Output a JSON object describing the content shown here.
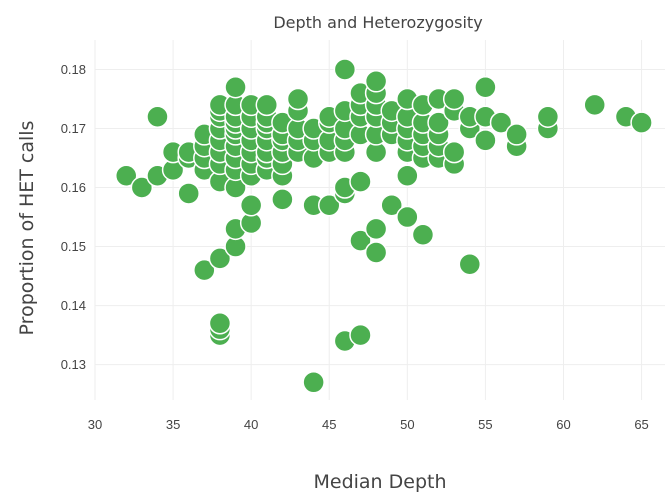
{
  "chart_data": {
    "type": "scatter",
    "title": "Depth and Heterozygosity",
    "xlabel": "Median Depth",
    "ylabel": "Proportion of HET calls",
    "xlim": [
      30,
      66.5
    ],
    "ylim": [
      0.124,
      0.185
    ],
    "xticks": [
      30,
      35,
      40,
      45,
      50,
      55,
      60,
      65
    ],
    "yticks": [
      0.13,
      0.14,
      0.15,
      0.16,
      0.17,
      0.18
    ],
    "grid": true,
    "marker_color": "#4caf50",
    "points": [
      [
        32,
        0.162
      ],
      [
        33,
        0.16
      ],
      [
        34,
        0.162
      ],
      [
        34,
        0.172
      ],
      [
        35,
        0.163
      ],
      [
        35,
        0.166
      ],
      [
        36,
        0.159
      ],
      [
        36,
        0.165
      ],
      [
        36,
        0.166
      ],
      [
        37,
        0.146
      ],
      [
        37,
        0.163
      ],
      [
        37,
        0.165
      ],
      [
        37,
        0.167
      ],
      [
        37,
        0.169
      ],
      [
        38,
        0.135
      ],
      [
        38,
        0.136
      ],
      [
        38,
        0.137
      ],
      [
        38,
        0.148
      ],
      [
        38,
        0.161
      ],
      [
        38,
        0.164
      ],
      [
        38,
        0.166
      ],
      [
        38,
        0.168
      ],
      [
        38,
        0.17
      ],
      [
        38,
        0.172
      ],
      [
        38,
        0.173
      ],
      [
        38,
        0.174
      ],
      [
        39,
        0.15
      ],
      [
        39,
        0.153
      ],
      [
        39,
        0.16
      ],
      [
        39,
        0.163
      ],
      [
        39,
        0.165
      ],
      [
        39,
        0.167
      ],
      [
        39,
        0.169
      ],
      [
        39,
        0.17
      ],
      [
        39,
        0.171
      ],
      [
        39,
        0.172
      ],
      [
        39,
        0.174
      ],
      [
        39,
        0.177
      ],
      [
        40,
        0.154
      ],
      [
        40,
        0.157
      ],
      [
        40,
        0.162
      ],
      [
        40,
        0.164
      ],
      [
        40,
        0.166
      ],
      [
        40,
        0.168
      ],
      [
        40,
        0.17
      ],
      [
        40,
        0.172
      ],
      [
        40,
        0.174
      ],
      [
        41,
        0.163
      ],
      [
        41,
        0.165
      ],
      [
        41,
        0.166
      ],
      [
        41,
        0.168
      ],
      [
        41,
        0.17
      ],
      [
        41,
        0.171
      ],
      [
        41,
        0.172
      ],
      [
        41,
        0.174
      ],
      [
        42,
        0.158
      ],
      [
        42,
        0.162
      ],
      [
        42,
        0.164
      ],
      [
        42,
        0.166
      ],
      [
        42,
        0.168
      ],
      [
        42,
        0.169
      ],
      [
        42,
        0.171
      ],
      [
        43,
        0.166
      ],
      [
        43,
        0.168
      ],
      [
        43,
        0.17
      ],
      [
        43,
        0.173
      ],
      [
        43,
        0.175
      ],
      [
        44,
        0.127
      ],
      [
        44,
        0.157
      ],
      [
        44,
        0.165
      ],
      [
        44,
        0.168
      ],
      [
        44,
        0.17
      ],
      [
        45,
        0.157
      ],
      [
        45,
        0.166
      ],
      [
        45,
        0.168
      ],
      [
        45,
        0.171
      ],
      [
        45,
        0.172
      ],
      [
        46,
        0.134
      ],
      [
        46,
        0.159
      ],
      [
        46,
        0.16
      ],
      [
        46,
        0.166
      ],
      [
        46,
        0.168
      ],
      [
        46,
        0.17
      ],
      [
        46,
        0.173
      ],
      [
        46,
        0.18
      ],
      [
        47,
        0.135
      ],
      [
        47,
        0.151
      ],
      [
        47,
        0.161
      ],
      [
        47,
        0.169
      ],
      [
        47,
        0.172
      ],
      [
        47,
        0.174
      ],
      [
        47,
        0.176
      ],
      [
        48,
        0.149
      ],
      [
        48,
        0.153
      ],
      [
        48,
        0.166
      ],
      [
        48,
        0.169
      ],
      [
        48,
        0.172
      ],
      [
        48,
        0.174
      ],
      [
        48,
        0.176
      ],
      [
        48,
        0.178
      ],
      [
        49,
        0.157
      ],
      [
        49,
        0.169
      ],
      [
        49,
        0.171
      ],
      [
        49,
        0.173
      ],
      [
        50,
        0.155
      ],
      [
        50,
        0.162
      ],
      [
        50,
        0.166
      ],
      [
        50,
        0.168
      ],
      [
        50,
        0.17
      ],
      [
        50,
        0.172
      ],
      [
        50,
        0.175
      ],
      [
        51,
        0.152
      ],
      [
        51,
        0.165
      ],
      [
        51,
        0.167
      ],
      [
        51,
        0.169
      ],
      [
        51,
        0.171
      ],
      [
        51,
        0.174
      ],
      [
        52,
        0.165
      ],
      [
        52,
        0.167
      ],
      [
        52,
        0.169
      ],
      [
        52,
        0.171
      ],
      [
        52,
        0.175
      ],
      [
        53,
        0.164
      ],
      [
        53,
        0.166
      ],
      [
        53,
        0.173
      ],
      [
        53,
        0.175
      ],
      [
        54,
        0.147
      ],
      [
        54,
        0.17
      ],
      [
        54,
        0.172
      ],
      [
        55,
        0.168
      ],
      [
        55,
        0.172
      ],
      [
        55,
        0.177
      ],
      [
        56,
        0.171
      ],
      [
        57,
        0.167
      ],
      [
        57,
        0.169
      ],
      [
        59,
        0.17
      ],
      [
        59,
        0.172
      ],
      [
        62,
        0.174
      ],
      [
        64,
        0.172
      ],
      [
        65,
        0.171
      ]
    ]
  }
}
